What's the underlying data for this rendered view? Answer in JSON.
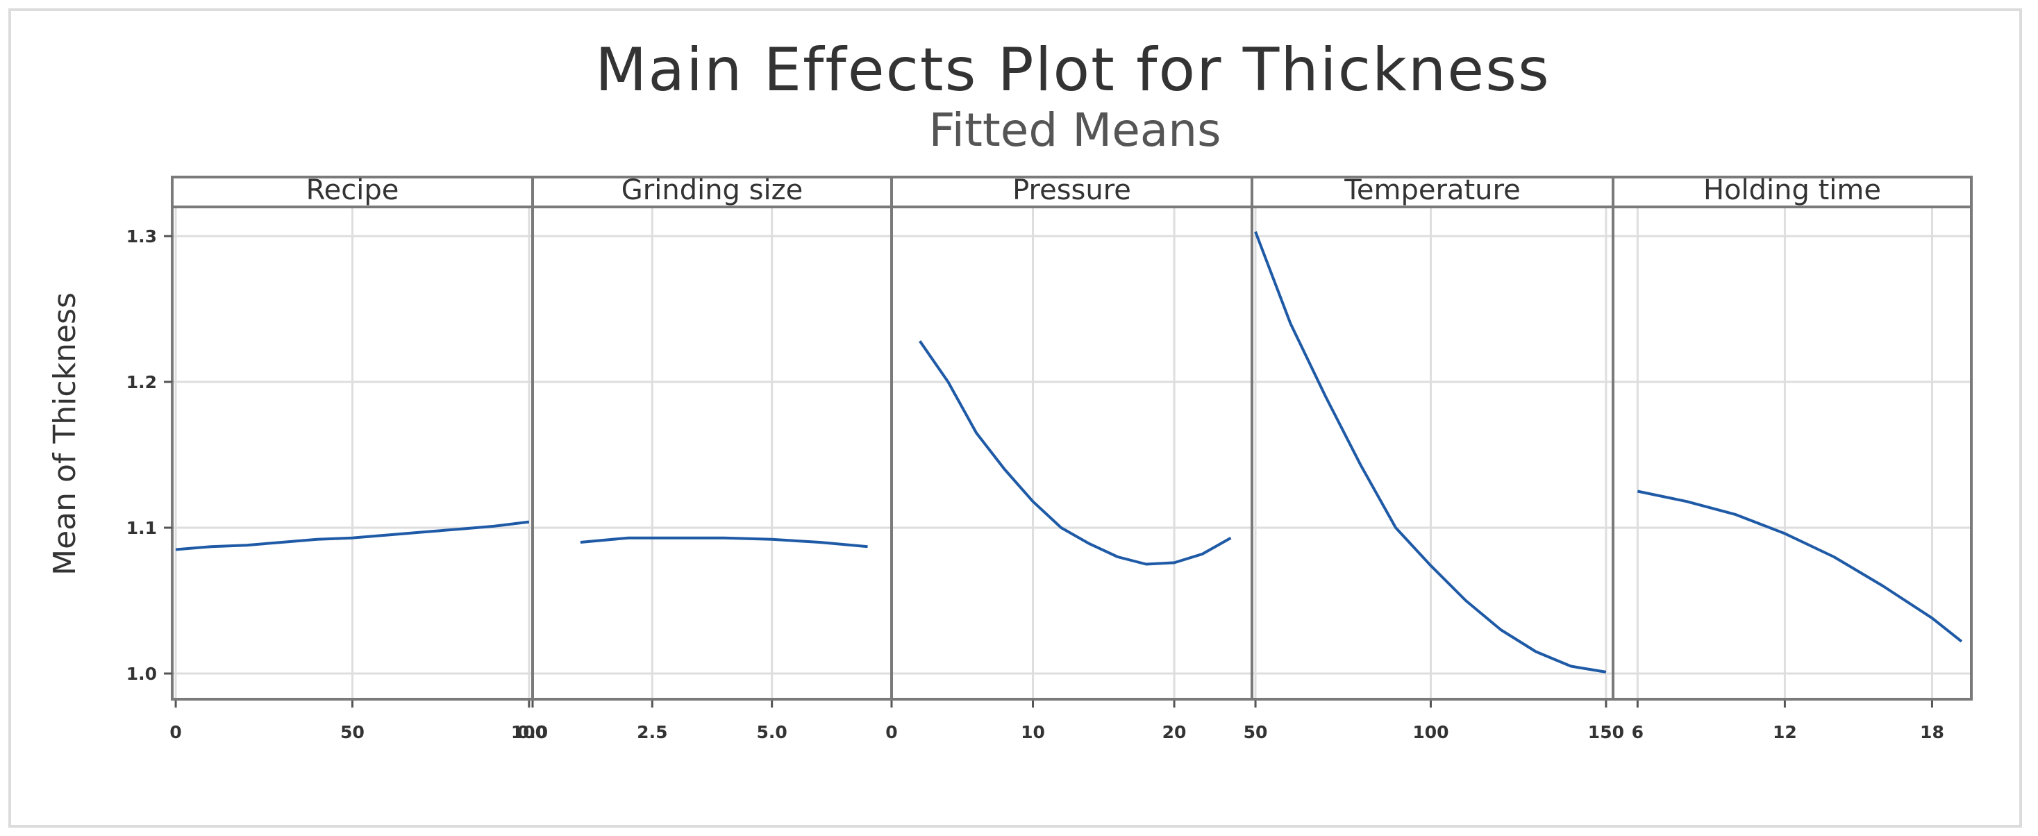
{
  "chart_data": {
    "type": "line",
    "title": "Main Effects Plot for Thickness",
    "subtitle": "Fitted Means",
    "ylabel": "Mean of Thickness",
    "ylim": [
      0.98,
      1.32
    ],
    "yticks": [
      1.0,
      1.1,
      1.2,
      1.3
    ],
    "ytick_labels": [
      "1.0",
      "1.1",
      "1.2",
      "1.3"
    ],
    "grid": true,
    "line_color": "#1f5aa6",
    "panels": [
      {
        "name": "Recipe",
        "xlim": [
          -1,
          101
        ],
        "xticks": [
          0,
          50,
          100
        ],
        "xtick_labels": [
          "0",
          "50",
          "100"
        ],
        "x": [
          0,
          10,
          20,
          30,
          40,
          50,
          60,
          70,
          80,
          90,
          100
        ],
        "y": [
          1.085,
          1.087,
          1.088,
          1.09,
          1.092,
          1.093,
          1.095,
          1.097,
          1.099,
          1.101,
          1.104
        ]
      },
      {
        "name": "Grinding size",
        "xlim": [
          0,
          7.5
        ],
        "xticks": [
          0,
          2.5,
          5.0
        ],
        "xtick_labels": [
          "0.0",
          "2.5",
          "5.0"
        ],
        "x": [
          1,
          2,
          3,
          4,
          5,
          6,
          7
        ],
        "y": [
          1.09,
          1.093,
          1.093,
          1.093,
          1.092,
          1.09,
          1.087
        ]
      },
      {
        "name": "Pressure",
        "xlim": [
          0,
          25.5
        ],
        "xticks": [
          0,
          10,
          20
        ],
        "xtick_labels": [
          "0",
          "10",
          "20"
        ],
        "x": [
          2,
          4,
          6,
          8,
          10,
          12,
          14,
          16,
          18,
          20,
          22,
          24
        ],
        "y": [
          1.228,
          1.2,
          1.165,
          1.14,
          1.118,
          1.1,
          1.089,
          1.08,
          1.075,
          1.076,
          1.082,
          1.093
        ]
      },
      {
        "name": "Temperature",
        "xlim": [
          49,
          152
        ],
        "xticks": [
          50,
          100,
          150
        ],
        "xtick_labels": [
          "50",
          "100",
          "150"
        ],
        "x": [
          50,
          60,
          70,
          80,
          90,
          100,
          110,
          120,
          130,
          140,
          150
        ],
        "y": [
          1.303,
          1.24,
          1.19,
          1.143,
          1.1,
          1.074,
          1.05,
          1.03,
          1.015,
          1.005,
          1.001
        ]
      },
      {
        "name": "Holding time",
        "xlim": [
          5,
          19.6
        ],
        "xticks": [
          6,
          12,
          18
        ],
        "xtick_labels": [
          "6",
          "12",
          "18"
        ],
        "x": [
          6,
          8,
          10,
          12,
          14,
          16,
          18,
          19.2
        ],
        "y": [
          1.125,
          1.118,
          1.109,
          1.096,
          1.08,
          1.06,
          1.038,
          1.022
        ]
      }
    ]
  }
}
